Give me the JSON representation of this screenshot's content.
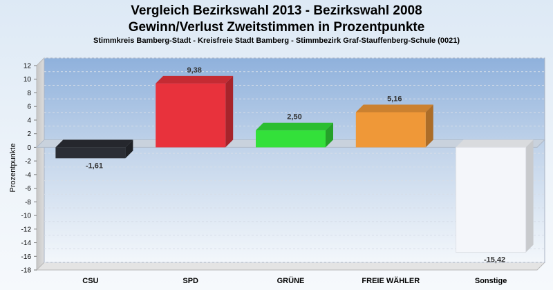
{
  "header": {
    "title_line1": "Vergleich Bezirkswahl 2013 - Bezirkswahl 2008",
    "title_line2": "Gewinn/Verlust Zweitstimmen in Prozentpunkte",
    "subtitle": "Stimmkreis Bamberg-Stadt - Kreisfreie Stadt Bamberg - Stimmbezirk Graf-Stauffenberg-Schule (0021)"
  },
  "chart_data": {
    "type": "bar",
    "title": "Vergleich Bezirkswahl 2013 - Bezirkswahl 2008",
    "subtitle": "Gewinn/Verlust Zweitstimmen in Prozentpunkte",
    "xlabel": "",
    "ylabel": "Prozentpunkte",
    "ylim": [
      -18,
      12
    ],
    "yticks": [
      "12",
      "10",
      "8",
      "6",
      "4",
      "2",
      "0",
      "-2",
      "-4",
      "-6",
      "-8",
      "-10",
      "-12",
      "-14",
      "-16",
      "-18"
    ],
    "categories": [
      "CSU",
      "SPD",
      "GRÜNE",
      "FREIE WÄHLER",
      "Sonstige"
    ],
    "values": [
      -1.61,
      9.38,
      2.5,
      5.16,
      -15.42
    ],
    "value_labels": [
      "-1,61",
      "9,38",
      "2,50",
      "5,16",
      "-15,42"
    ],
    "colors": [
      "#2b2e35",
      "#e8323c",
      "#33e03a",
      "#ef9838",
      "#f4f6fa"
    ],
    "grid": true,
    "legend": "none"
  }
}
